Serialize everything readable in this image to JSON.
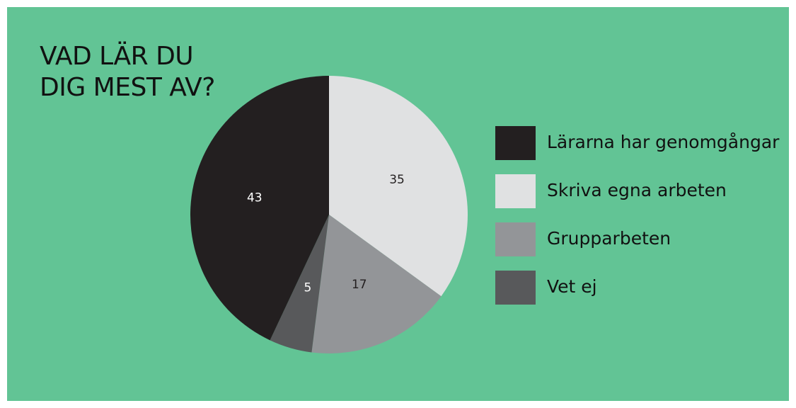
{
  "chart_data": {
    "type": "pie",
    "title": "VAD LÄR DU\nDIG MEST AV?",
    "categories": [
      "Lärarna har genomgångar",
      "Skriva egna arbeten",
      "Grupparbeten",
      "Vet ej"
    ],
    "values": [
      43,
      35,
      17,
      5
    ],
    "colors": [
      "#231f20",
      "#e0e1e2",
      "#939598",
      "#58595b"
    ],
    "label_colors": [
      "#ffffff",
      "#231f20",
      "#231f20",
      "#ffffff"
    ],
    "legend": "right"
  }
}
